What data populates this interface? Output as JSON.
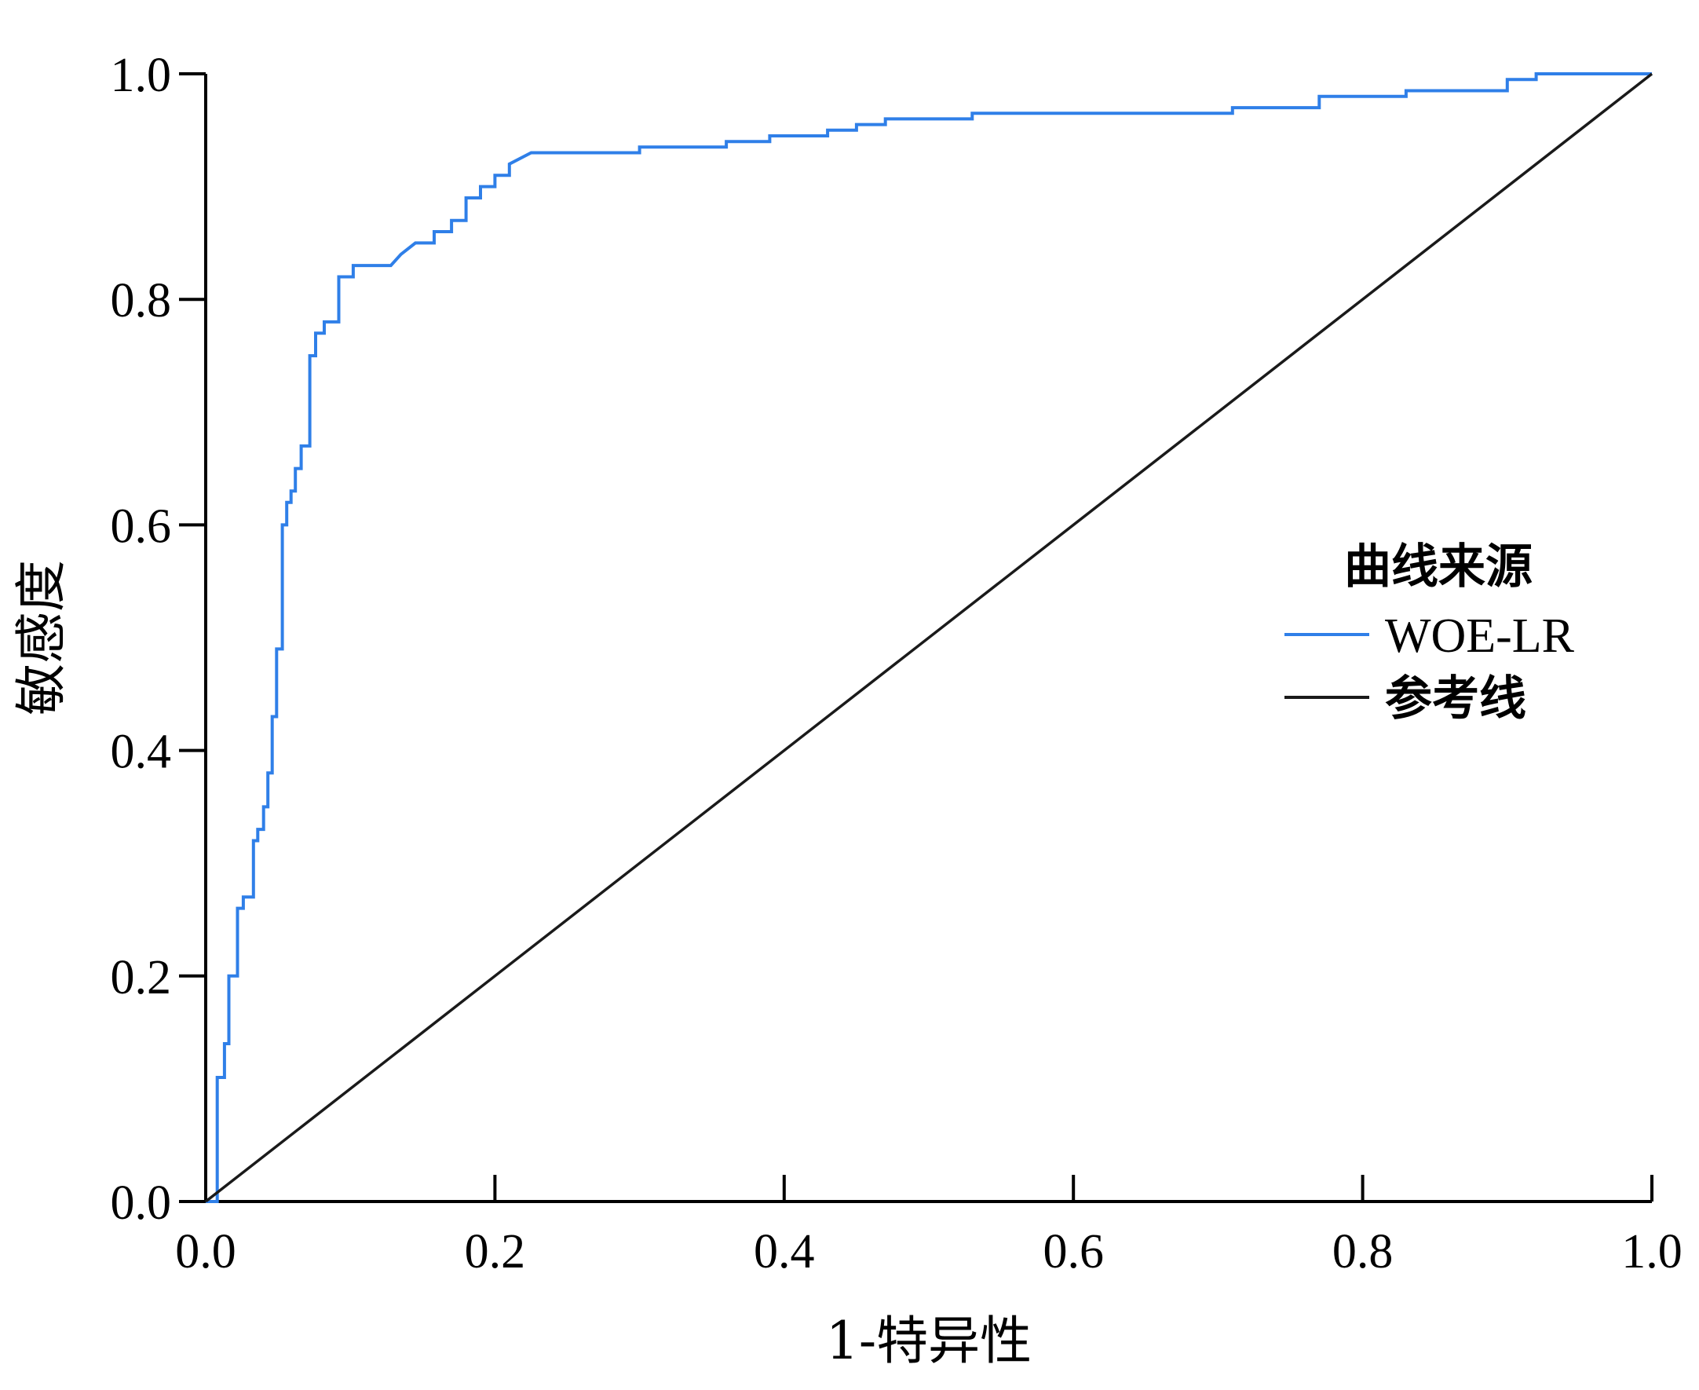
{
  "chart_data": {
    "type": "line",
    "title": "",
    "xlabel": "1-特异性",
    "ylabel": "敏感度",
    "xlim": [
      0,
      1
    ],
    "ylim": [
      0,
      1
    ],
    "xticks": [
      "0.0",
      "0.2",
      "0.4",
      "0.6",
      "0.8",
      "1.0"
    ],
    "yticks": [
      "0.0",
      "0.2",
      "0.4",
      "0.6",
      "0.8",
      "1.0"
    ],
    "grid": false,
    "legend": {
      "title": "曲线来源",
      "position": "right"
    },
    "series": [
      {
        "name": "WOE-LR",
        "color": "#2f7fe8",
        "x": [
          0,
          0.008,
          0.008,
          0.013,
          0.013,
          0.016,
          0.016,
          0.022,
          0.022,
          0.026,
          0.026,
          0.033,
          0.033,
          0.036,
          0.036,
          0.04,
          0.04,
          0.043,
          0.043,
          0.046,
          0.046,
          0.049,
          0.049,
          0.053,
          0.053,
          0.056,
          0.056,
          0.059,
          0.059,
          0.062,
          0.062,
          0.066,
          0.066,
          0.072,
          0.072,
          0.076,
          0.076,
          0.082,
          0.082,
          0.092,
          0.092,
          0.102,
          0.102,
          0.112,
          0.128,
          0.135,
          0.145,
          0.158,
          0.158,
          0.17,
          0.17,
          0.18,
          0.18,
          0.19,
          0.19,
          0.2,
          0.2,
          0.21,
          0.21,
          0.225,
          0.3,
          0.3,
          0.36,
          0.36,
          0.39,
          0.39,
          0.43,
          0.43,
          0.45,
          0.45,
          0.47,
          0.47,
          0.53,
          0.53,
          0.71,
          0.71,
          0.77,
          0.77,
          0.83,
          0.83,
          0.9,
          0.9,
          0.92,
          0.92,
          1.0
        ],
        "y": [
          0,
          0,
          0.11,
          0.11,
          0.14,
          0.14,
          0.2,
          0.2,
          0.26,
          0.26,
          0.27,
          0.27,
          0.32,
          0.32,
          0.33,
          0.33,
          0.35,
          0.35,
          0.38,
          0.38,
          0.43,
          0.43,
          0.49,
          0.49,
          0.6,
          0.6,
          0.62,
          0.62,
          0.63,
          0.63,
          0.65,
          0.65,
          0.67,
          0.67,
          0.75,
          0.75,
          0.77,
          0.77,
          0.78,
          0.78,
          0.82,
          0.82,
          0.83,
          0.83,
          0.83,
          0.84,
          0.85,
          0.85,
          0.86,
          0.86,
          0.87,
          0.87,
          0.89,
          0.89,
          0.9,
          0.9,
          0.91,
          0.91,
          0.92,
          0.93,
          0.93,
          0.935,
          0.935,
          0.94,
          0.94,
          0.945,
          0.945,
          0.95,
          0.95,
          0.955,
          0.955,
          0.96,
          0.96,
          0.965,
          0.965,
          0.97,
          0.97,
          0.98,
          0.98,
          0.985,
          0.985,
          0.995,
          0.995,
          1.0,
          1.0
        ]
      },
      {
        "name": "参考线",
        "color": "#1a1a1a",
        "x": [
          0,
          1
        ],
        "y": [
          0,
          1
        ]
      }
    ]
  }
}
